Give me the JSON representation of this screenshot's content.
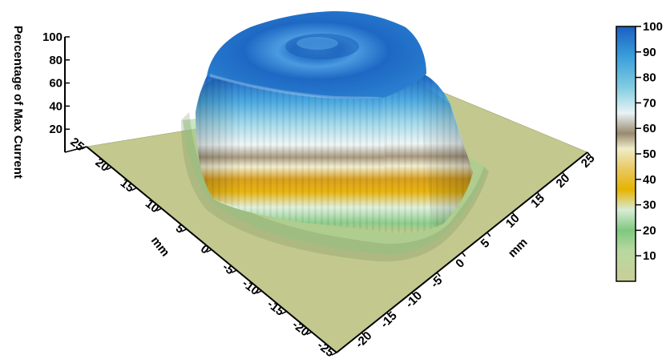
{
  "chart_data": {
    "type": "surface3d",
    "title": "",
    "zlabel": "Percentage of Max Current",
    "xlabel": "mm",
    "ylabel": "mm",
    "zlim": [
      0,
      100
    ],
    "z_ticks": [
      "20",
      "40",
      "60",
      "80",
      "100"
    ],
    "x_axis_ticks": [
      "25",
      "20",
      "15",
      "10",
      "5",
      "0",
      "-5",
      "-10",
      "-15",
      "-20",
      "-25"
    ],
    "y_axis_ticks": [
      "-20",
      "-15",
      "-10",
      "-5",
      "0",
      "5",
      "10",
      "15",
      "20",
      "25"
    ],
    "colorbar": {
      "min": 0,
      "max": 100,
      "ticks": [
        "10",
        "20",
        "30",
        "40",
        "50",
        "60",
        "70",
        "80",
        "90",
        "100"
      ],
      "colors": [
        "#c8cf96",
        "#7fc87e",
        "#d8ecd6",
        "#e6b400",
        "#f0ecc8",
        "#9a8a70",
        "#e8f3f4",
        "#82cde0",
        "#3a9fdc",
        "#1a5fc0"
      ]
    },
    "surface": {
      "description_free": true,
      "x_range": [
        -25,
        25
      ],
      "y_range": [
        -25,
        25
      ],
      "plateau_halfwidth_mm": 15,
      "plateau_max": 100,
      "base": 0
    }
  }
}
